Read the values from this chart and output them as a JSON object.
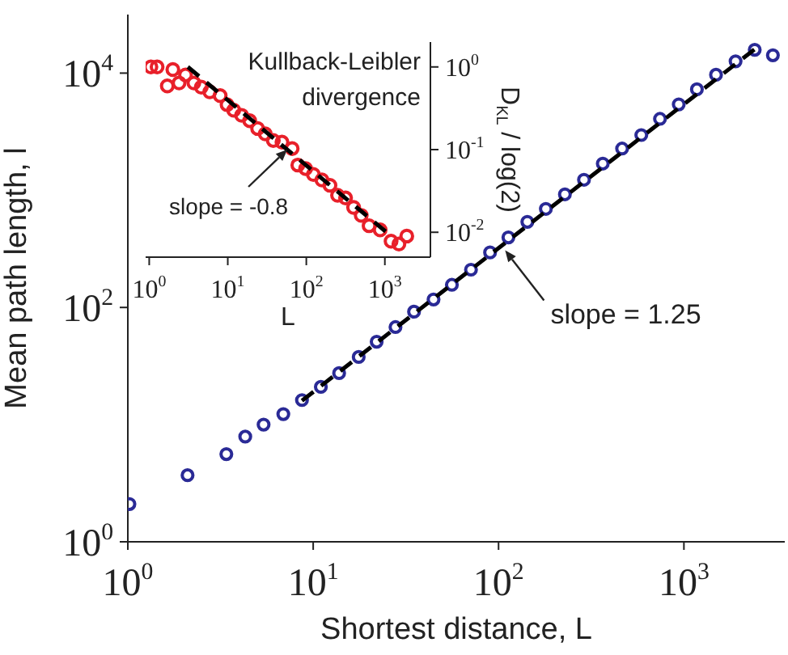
{
  "chart_data": [
    {
      "type": "scatter",
      "xlabel": "Shortest distance, L",
      "ylabel": "Mean path length, l",
      "log": "xy",
      "grid": false,
      "legend": false,
      "marker": "circle",
      "xlim": [
        1,
        3500
      ],
      "xticks": [
        {
          "value": 1,
          "label": "10$^{0}$"
        },
        {
          "value": 10,
          "label": "10$^{1}$"
        },
        {
          "value": 100,
          "label": "10$^{2}$"
        },
        {
          "value": 1000,
          "label": "10$^{3}$"
        }
      ],
      "ylim": [
        1,
        31600
      ],
      "yticks": [
        {
          "value": 1,
          "label": "10$^{0}$"
        },
        {
          "value": 100,
          "label": "10$^{2}$"
        },
        {
          "value": 10000,
          "label": "10$^{4}$"
        }
      ],
      "x": [
        1.02,
        2.1,
        3.4,
        4.3,
        5.4,
        6.9,
        8.7,
        11,
        13.8,
        17.6,
        22,
        27.8,
        35,
        44.6,
        56,
        71,
        90,
        113,
        143,
        180,
        228,
        289,
        365,
        464,
        589,
        743,
        938,
        1175,
        1490,
        1900,
        2410,
        3020
      ],
      "series": [
        {
          "color": "#2a2a96",
          "values": [
            2.1,
            3.7,
            5.6,
            7.9,
            10,
            12.3,
            16.2,
            21,
            27.5,
            37.8,
            51,
            68,
            92,
            117,
            156,
            210,
            295,
            396,
            538,
            694,
            924,
            1230,
            1690,
            2270,
            2960,
            4070,
            5410,
            7280,
            9690,
            12600,
            15800,
            14200
          ]
        },
        {
          "type": "line",
          "color": "#000000",
          "line_style": "dashed",
          "marker": "none",
          "x": [
            8.7,
            2410
          ],
          "values": [
            16,
            16000
          ]
        }
      ],
      "annotations": [
        {
          "text": "slope = 1.25",
          "x": 113,
          "y": 396
        }
      ]
    },
    {
      "type": "scatter",
      "title": "Kullback-Leibler divergence",
      "xlabel": "L",
      "ylabel": "D$_{KL}$ / log(2)",
      "log": "xy",
      "grid": false,
      "legend": false,
      "marker": "circle",
      "xlim": [
        0.9,
        3800
      ],
      "xticks": [
        {
          "value": 1,
          "label": "10$^{0}$"
        },
        {
          "value": 10,
          "label": "10$^{1}$"
        },
        {
          "value": 100,
          "label": "10$^{2}$"
        },
        {
          "value": 1000,
          "label": "10$^{3}$"
        }
      ],
      "ylim": [
        0.005,
        2
      ],
      "yticks": [
        {
          "value": 1,
          "label": "10$^{0}$"
        },
        {
          "value": 0.1,
          "label": "10$^{-1}$"
        },
        {
          "value": 0.01,
          "label": "10$^{-2}$"
        }
      ],
      "x": [
        1.05,
        1.26,
        1.7,
        2.0,
        2.4,
        2.9,
        3.7,
        4.6,
        5.9,
        8.0,
        9.8,
        11.9,
        15,
        19,
        24,
        30,
        38,
        49,
        66,
        78,
        98,
        123,
        158,
        200,
        250,
        316,
        400,
        500,
        630,
        870,
        1200,
        1510,
        1900
      ],
      "series": [
        {
          "color": "#e8202a",
          "values": [
            1.0,
            1.0,
            0.59,
            0.93,
            0.64,
            0.8,
            0.64,
            0.57,
            0.5,
            0.45,
            0.35,
            0.3,
            0.26,
            0.224,
            0.18,
            0.155,
            0.129,
            0.123,
            0.103,
            0.065,
            0.059,
            0.05,
            0.043,
            0.037,
            0.028,
            0.026,
            0.02,
            0.016,
            0.012,
            0.0107,
            0.0078,
            0.0072,
            0.009
          ]
        },
        {
          "type": "line",
          "color": "#000000",
          "line_style": "dashed",
          "marker": "none",
          "x": [
            3.1,
            1200
          ],
          "values": [
            1.0,
            0.009
          ]
        }
      ],
      "annotations": [
        {
          "text": "slope = -0.8",
          "x": 66,
          "y": 0.1
        }
      ]
    }
  ]
}
